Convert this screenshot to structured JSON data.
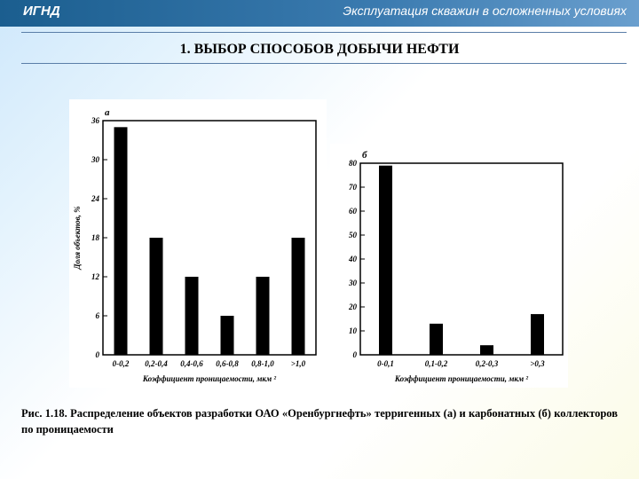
{
  "header": {
    "org": "ИГНД",
    "course": "Эксплуатация скважин в осложненных условиях"
  },
  "slide_title": "1. ВЫБОР СПОСОБОВ ДОБЫЧИ НЕФТИ",
  "caption": "Рис. 1.18. Распределение объектов разработки ОАО «Оренбургнефть» терригенных (а) и карбонатных (б) коллекторов по проницаемости",
  "chart_data": [
    {
      "type": "bar",
      "panel_label": "а",
      "categories": [
        "0-0,2",
        "0,2-0,4",
        "0,4-0,6",
        "0,6-0,8",
        "0,8-1,0",
        ">1,0"
      ],
      "values": [
        35,
        18,
        12,
        6,
        12,
        18
      ],
      "ylim": [
        0,
        36
      ],
      "yticks": [
        "0",
        "6",
        "12",
        "18",
        "24",
        "30",
        "36"
      ],
      "ylabel": "Доля объектов, %",
      "xlabel": "Коэффициент проницаемости, мкм ²",
      "bar_color": "#000000"
    },
    {
      "type": "bar",
      "panel_label": "б",
      "categories": [
        "0-0,1",
        "0,1-0,2",
        "0,2-0,3",
        ">0,3"
      ],
      "values": [
        79,
        13,
        4,
        17
      ],
      "ylim": [
        0,
        80
      ],
      "yticks": [
        "0",
        "10",
        "20",
        "30",
        "40",
        "50",
        "60",
        "70",
        "80"
      ],
      "ylabel": "",
      "xlabel": "Коэффициент проницаемости, мкм ²",
      "bar_color": "#000000"
    }
  ]
}
